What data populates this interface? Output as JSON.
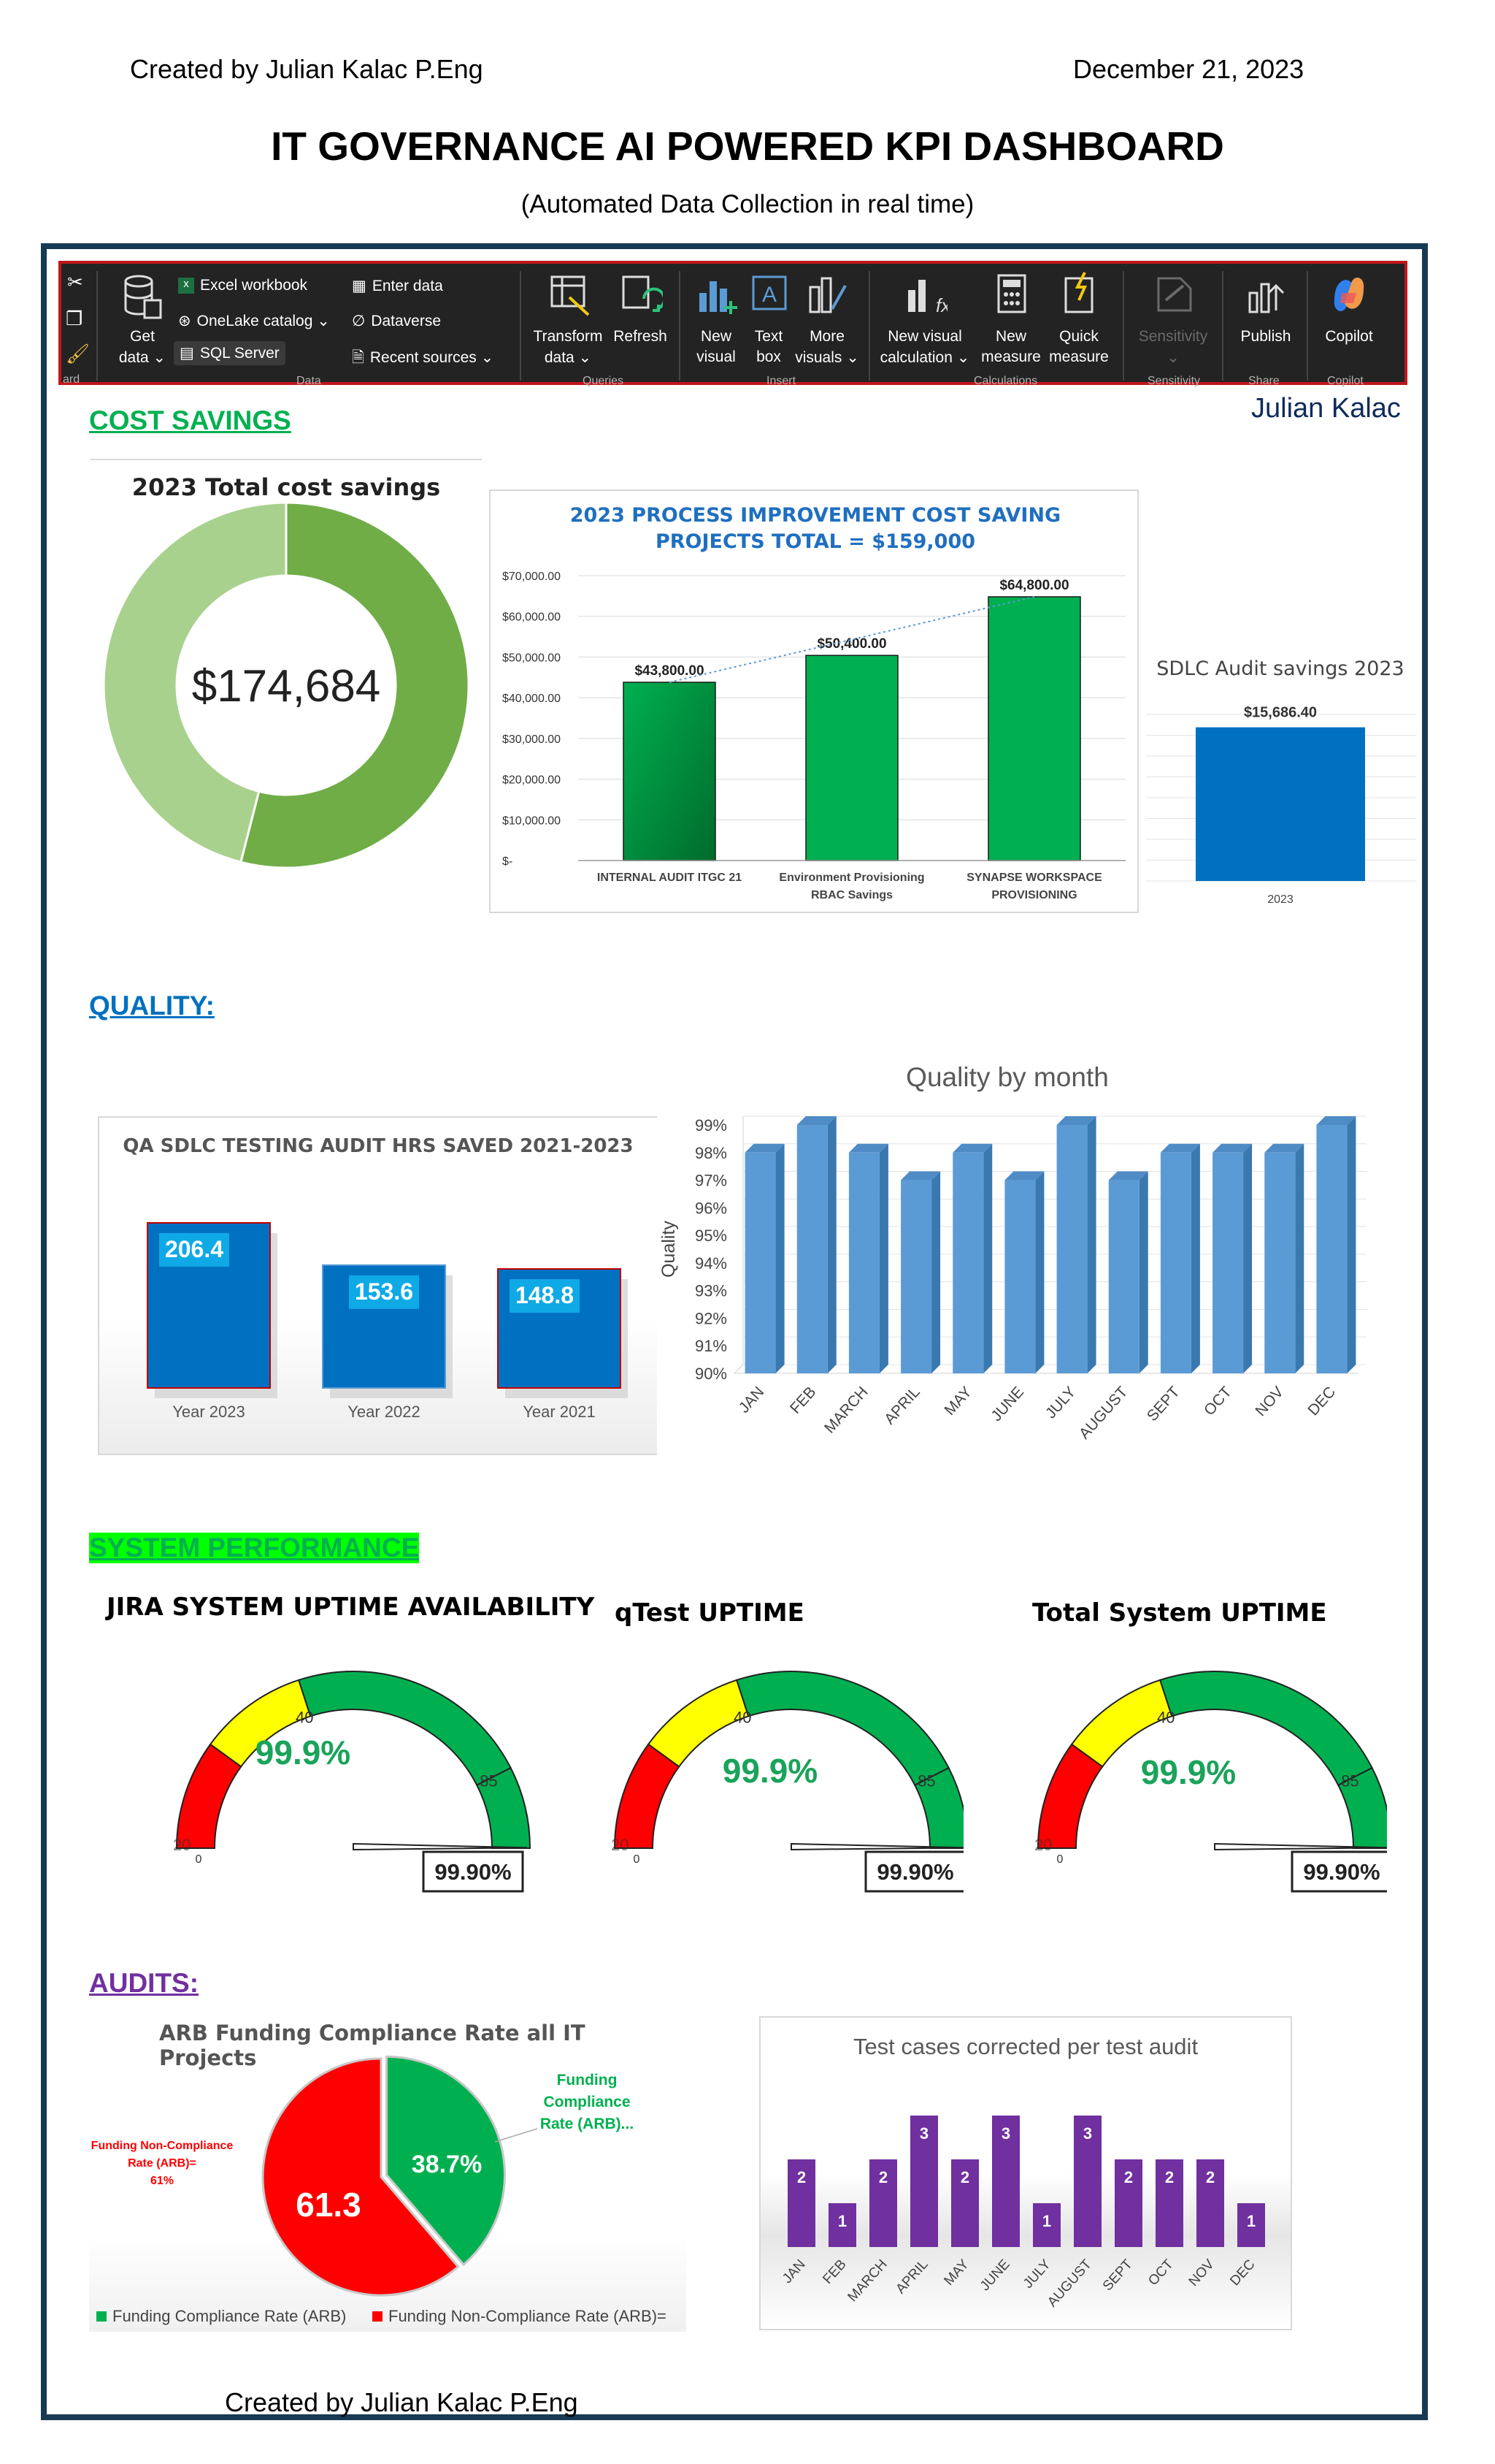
{
  "header": {
    "author": "Created by Julian Kalac P.Eng",
    "date": "December 21, 2023",
    "title": "IT GOVERNANCE AI POWERED KPI DASHBOARD",
    "subtitle": "(Automated Data Collection in real time)"
  },
  "ribbon": {
    "get_data": "Get",
    "get_data2": "data ⌄",
    "excel": "Excel workbook",
    "onelake": "OneLake catalog ⌄",
    "sql": "SQL Server",
    "enter_data": "Enter data",
    "dataverse": "Dataverse",
    "recent": "Recent sources ⌄",
    "group_data": "Data",
    "transform": "Transform",
    "transform2": "data ⌄",
    "refresh": "Refresh",
    "group_queries": "Queries",
    "new_visual": "New",
    "new_visual2": "visual",
    "text_box": "Text",
    "text_box2": "box",
    "more_visuals": "More",
    "more_visuals2": "visuals ⌄",
    "group_insert": "Insert",
    "new_visual_calc": "New visual",
    "new_visual_calc2": "calculation ⌄",
    "new_measure": "New",
    "new_measure2": "measure",
    "quick_measure": "Quick",
    "quick_measure2": "measure",
    "group_calc": "Calculations",
    "sensitivity": "Sensitivity",
    "sensitivity2": "⌄",
    "group_sensitivity": "Sensitivity",
    "publish": "Publish",
    "group_share": "Share",
    "copilot": "Copilot",
    "group_copilot": "Copilot",
    "board": "ard"
  },
  "owner": "Julian Kalac",
  "sections": {
    "cost": "COST SAVINGS",
    "quality": "QUALITY:",
    "system": "SYSTEM PERFORMANCE",
    "audits": "AUDITS:"
  },
  "colors": {
    "cost": "#00b050",
    "quality": "#0070c0",
    "system_bg": "#00ff00",
    "system_text": "#00b050",
    "audits": "#7030a0",
    "bar_blue": "#0070c0",
    "bar_green": "#00b050",
    "gauge_red": "#ff0000",
    "gauge_yellow": "#ffff00",
    "gauge_green": "#00b050",
    "purple": "#7030a0",
    "quality_bar": "#5b9bd5"
  },
  "footer": "Created by Julian Kalac P.Eng",
  "chart_data": [
    {
      "id": "total_savings",
      "type": "pie",
      "title": "2023 Total cost savings",
      "center_label": "$174,684",
      "values": [
        54,
        46
      ]
    },
    {
      "id": "process_improvement",
      "type": "bar",
      "title_line1": "2023 PROCESS IMPROVEMENT COST SAVING",
      "title_line2": "PROJECTS TOTAL = $159,000",
      "categories": [
        [
          "INTERNAL AUDIT ITGC 21"
        ],
        [
          "Environment Provisioning",
          "RBAC  Savings"
        ],
        [
          "SYNAPSE WORKSPACE",
          "PROVISIONING"
        ]
      ],
      "values": [
        43800,
        50400,
        64800
      ],
      "value_labels": [
        "$43,800.00",
        "$50,400.00",
        "$64,800.00"
      ],
      "ylim": [
        0,
        70000
      ],
      "yticks": [
        "$-",
        "$10,000.00",
        "$20,000.00",
        "$30,000.00",
        "$40,000.00",
        "$50,000.00",
        "$60,000.00",
        "$70,000.00"
      ]
    },
    {
      "id": "sdlc_audit",
      "type": "bar",
      "title": "SDLC Audit savings 2023",
      "categories": [
        "2023"
      ],
      "values": [
        15686.4
      ],
      "value_labels": [
        "$15,686.40"
      ],
      "ylim": [
        0,
        17000
      ]
    },
    {
      "id": "qa_hours",
      "type": "bar",
      "title": "QA SDLC TESTING AUDIT HRS SAVED 2021-2023",
      "categories": [
        "Year 2023",
        "Year 2022",
        "Year 2021"
      ],
      "values": [
        206.4,
        153.6,
        148.8
      ],
      "value_labels": [
        "206.4",
        "153.6",
        "148.8"
      ]
    },
    {
      "id": "quality_month",
      "type": "bar",
      "title": "Quality by month",
      "ylabel": "Quality",
      "categories": [
        "JAN",
        "FEB",
        "MARCH",
        "APRIL",
        "MAY",
        "JUNE",
        "JULY",
        "AUGUST",
        "SEPT",
        "OCT",
        "NOV",
        "DEC"
      ],
      "values": [
        98,
        99,
        98,
        97,
        98,
        97,
        99,
        97,
        98,
        98,
        98,
        99
      ],
      "ylim": [
        90,
        99
      ],
      "yticks": [
        "90%",
        "91%",
        "92%",
        "93%",
        "94%",
        "95%",
        "96%",
        "97%",
        "98%",
        "99%"
      ]
    },
    {
      "id": "gauge_jira",
      "type": "gauge",
      "title": "JIRA  SYSTEM UPTIME AVAILABILITY",
      "value": 99.9,
      "value_label": "99.9%",
      "box_label": "99.90%",
      "bands": [
        20,
        40,
        85,
        100
      ],
      "band_labels": [
        "20",
        "40",
        "85"
      ],
      "min_label": "0"
    },
    {
      "id": "gauge_qtest",
      "type": "gauge",
      "title": "qTest  UPTIME",
      "value": 99.9,
      "value_label": "99.9%",
      "box_label": "99.90%",
      "bands": [
        20,
        40,
        85,
        100
      ],
      "band_labels": [
        "20",
        "40",
        "85"
      ],
      "min_label": "0"
    },
    {
      "id": "gauge_total",
      "type": "gauge",
      "title": "Total System  UPTIME",
      "value": 99.9,
      "value_label": "99.9%",
      "box_label": "99.90%",
      "bands": [
        20,
        40,
        85,
        100
      ],
      "band_labels": [
        "20",
        "40",
        "85"
      ],
      "min_label": "0"
    },
    {
      "id": "arb_funding",
      "type": "pie",
      "title": "ARB Funding Compliance Rate  all IT Projects",
      "series": [
        {
          "name": "Funding Compliance Rate (ARB)",
          "value": 38.7,
          "label": "38.7%",
          "callout": [
            "Funding",
            "Compliance",
            "Rate (ARB)..."
          ]
        },
        {
          "name": "Funding Non-Compliance Rate (ARB)=",
          "value": 61.3,
          "label": "61.3",
          "callout": [
            "Funding Non-Compliance",
            "Rate (ARB)=",
            "61%"
          ]
        }
      ]
    },
    {
      "id": "test_cases",
      "type": "bar",
      "title": "Test cases corrected per test audit",
      "categories": [
        "JAN",
        "FEB",
        "MARCH",
        "APRIL",
        "MAY",
        "JUNE",
        "JULY",
        "AUGUST",
        "SEPT",
        "OCT",
        "NOV",
        "DEC"
      ],
      "values": [
        2,
        1,
        2,
        3,
        2,
        3,
        1,
        3,
        2,
        2,
        2,
        1
      ]
    }
  ]
}
